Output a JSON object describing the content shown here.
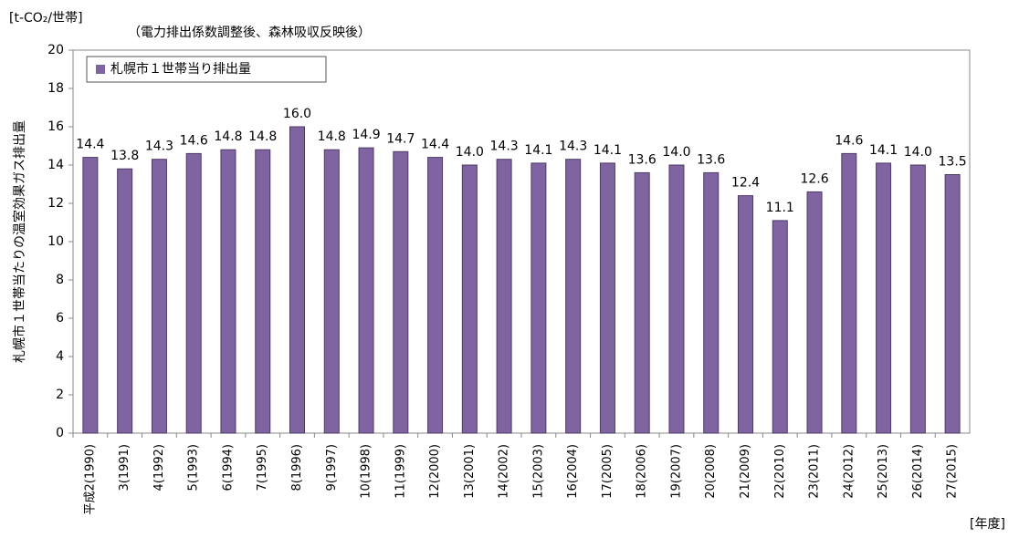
{
  "chart_data": {
    "type": "bar",
    "title": "[t-CO₂/世帯]",
    "subtitle": "（電力排出係数調整後、森林吸収反映後）",
    "y_label": "札幌市１世帯当たりの温室効果ガス排出量",
    "x_label": "[年度]",
    "categories": [
      "平成2(1990)",
      "3(1991)",
      "4(1992)",
      "5(1993)",
      "6(1994)",
      "7(1995)",
      "8(1996)",
      "9(1997)",
      "10(1998)",
      "11(1999)",
      "12(2000)",
      "13(2001)",
      "14(2002)",
      "15(2003)",
      "16(2004)",
      "17(2005)",
      "18(2006)",
      "19(2007)",
      "20(2008)",
      "21(2009)",
      "22(2010)",
      "23(2011)",
      "24(2012)",
      "25(2013)",
      "26(2014)",
      "27(2015)"
    ],
    "series": [
      {
        "name": "札幌市１世帯当り排出量",
        "color": "#8064a2",
        "values": [
          14.4,
          13.8,
          14.3,
          14.6,
          14.8,
          14.8,
          16.0,
          14.8,
          14.9,
          14.7,
          14.4,
          14.0,
          14.3,
          14.1,
          14.3,
          14.1,
          13.6,
          14.0,
          13.6,
          12.4,
          11.1,
          12.6,
          14.6,
          14.1,
          14.0,
          13.5
        ],
        "value_labels": [
          "14.4",
          "13.8",
          "14.3",
          "14.6",
          "14.8",
          "14.8",
          "16.0",
          "14.8",
          "14.9",
          "14.7",
          "14.4",
          "14.0",
          "14.3",
          "14.1",
          "14.3",
          "14.1",
          "13.6",
          "14.0",
          "13.6",
          "12.4",
          "11.1",
          "12.6",
          "14.6",
          "14.1",
          "14.0",
          "13.5"
        ]
      }
    ],
    "ylim": [
      0,
      20
    ],
    "yticks": [
      0,
      2,
      4,
      6,
      8,
      10,
      12,
      14,
      16,
      18,
      20
    ],
    "legend": "top-left"
  }
}
